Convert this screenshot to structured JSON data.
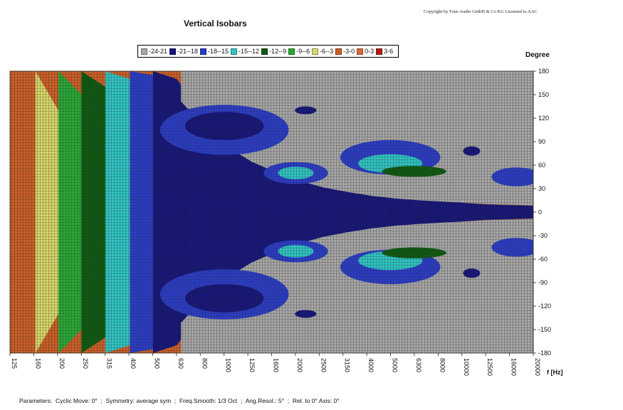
{
  "copyright": "Copyright by Four-Audio GmbH & Co KG   Licensed to AAC",
  "parameters": {
    "prefix": "Parameters:",
    "items": [
      "Cyclic Move: 0°",
      "Symmetry: average sym",
      "Freq.Smooth: 1/3 Oct",
      "Ang.Resol.: 5°",
      "Rel. to 0° Axis: 0°"
    ]
  },
  "colors": {
    "background_grid": "#a7a7a7",
    "grid_lines": "#2c2c2c"
  },
  "chart_data": {
    "type": "heatmap",
    "title": "Vertical Isobars",
    "xlabel": "f [Hz]",
    "ylabel": "Degree",
    "x_scale": "log",
    "x_ticks": [
      "125",
      "160",
      "200",
      "250",
      "315",
      "400",
      "500",
      "630",
      "800",
      "1000",
      "1250",
      "1600",
      "2000",
      "2500",
      "3150",
      "4000",
      "5000",
      "6300",
      "8000",
      "10000",
      "12500",
      "16000",
      "20000"
    ],
    "y_ticks": [
      180,
      150,
      120,
      90,
      60,
      30,
      0,
      -30,
      -60,
      -90,
      -120,
      -150,
      -180
    ],
    "ylim": [
      -180,
      180
    ],
    "xlim": [
      125,
      20000
    ],
    "legend_placement": "top",
    "legend": [
      {
        "label": "-24-21",
        "color": "#a7a7a7"
      },
      {
        "label": "-21--18",
        "color": "#15157a"
      },
      {
        "label": "-18--15",
        "color": "#2a3cc6"
      },
      {
        "label": "-15--12",
        "color": "#30c5c5"
      },
      {
        "label": "-12--9",
        "color": "#0e5a10"
      },
      {
        "label": "-9--6",
        "color": "#28a834"
      },
      {
        "label": "-6--3",
        "color": "#d8d86a"
      },
      {
        "label": "-3-0",
        "color": "#cc5f26"
      },
      {
        "label": "0-3",
        "color": "#d86a3a"
      },
      {
        "label": "3-6",
        "color": "#b01c14"
      }
    ],
    "contours": [
      {
        "level": "-3-0",
        "color": "#cc5f26",
        "frequency_hz": [
          125,
          160,
          200,
          250,
          315,
          400,
          500,
          630,
          800,
          1000,
          1250,
          1600,
          2000,
          2500,
          3150,
          4000,
          5000,
          6300,
          8000,
          10000,
          12500,
          16000,
          20000
        ],
        "half_width_deg": [
          180,
          180,
          180,
          180,
          180,
          180,
          180,
          180,
          180,
          180,
          180,
          180,
          180,
          180,
          180,
          180,
          180,
          180,
          180,
          180,
          180,
          180,
          180
        ]
      },
      {
        "level": "-6--3",
        "color": "#d8d86a",
        "frequency_hz": [
          160,
          200,
          250,
          315,
          400,
          500,
          630,
          800,
          1000,
          1250,
          1600,
          2000,
          2500,
          3150,
          4000,
          5000,
          6300,
          8000,
          10000,
          12500,
          16000,
          20000
        ],
        "half_width_deg": [
          180,
          130,
          100,
          82,
          62,
          48,
          36,
          26,
          20,
          14,
          11,
          8,
          6,
          5,
          4,
          3,
          3,
          2,
          2,
          2,
          2,
          2
        ]
      },
      {
        "level": "-9--6",
        "color": "#28a834",
        "frequency_hz": [
          200,
          250,
          315,
          400,
          500,
          630,
          800,
          1000,
          1250,
          1600,
          2000,
          2500,
          3150,
          4000,
          5000,
          6300,
          8000,
          10000,
          12500,
          16000,
          20000
        ],
        "half_width_deg": [
          180,
          150,
          110,
          82,
          62,
          46,
          34,
          26,
          20,
          15,
          11,
          8,
          6,
          5,
          4,
          3,
          3,
          2,
          2,
          2,
          2
        ]
      },
      {
        "level": "-12--9",
        "color": "#0e5a10",
        "frequency_hz": [
          250,
          315,
          400,
          500,
          630,
          800,
          1000,
          1250,
          1600,
          2000,
          2500,
          3150,
          4000,
          5000,
          6300,
          8000,
          10000,
          12500,
          16000,
          20000
        ],
        "half_width_deg": [
          180,
          160,
          120,
          90,
          68,
          52,
          40,
          30,
          23,
          18,
          14,
          11,
          9,
          7,
          6,
          5,
          4,
          3,
          3,
          2
        ]
      },
      {
        "level": "-15--12",
        "color": "#30c5c5",
        "frequency_hz": [
          315,
          400,
          500,
          630,
          800,
          1000,
          1250,
          1600,
          2000,
          2500,
          3150,
          4000,
          5000,
          6300,
          8000,
          10000,
          12500,
          16000,
          20000
        ],
        "half_width_deg": [
          180,
          170,
          130,
          96,
          72,
          56,
          44,
          34,
          27,
          21,
          17,
          14,
          11,
          9,
          8,
          7,
          6,
          5,
          4
        ]
      },
      {
        "level": "-18--15",
        "color": "#2a3cc6",
        "frequency_hz": [
          400,
          500,
          630,
          800,
          1000,
          1250,
          1600,
          2000,
          2500,
          3150,
          4000,
          5000,
          6300,
          8000,
          10000,
          12500,
          16000,
          20000
        ],
        "half_width_deg": [
          180,
          175,
          140,
          104,
          80,
          62,
          48,
          38,
          30,
          24,
          19,
          16,
          13,
          11,
          9,
          8,
          7,
          6
        ]
      },
      {
        "level": "-21--18",
        "color": "#15157a",
        "frequency_hz": [
          500,
          630,
          800,
          1000,
          1250,
          1600,
          2000,
          2500,
          3150,
          4000,
          5000,
          6300,
          8000,
          10000,
          12500,
          16000,
          20000
        ],
        "half_width_deg": [
          180,
          170,
          128,
          98,
          76,
          59,
          46,
          36,
          29,
          23,
          19,
          16,
          14,
          12,
          10,
          9,
          8
        ]
      }
    ],
    "islands": [
      {
        "level": "-18--15",
        "freq_hz": 1000,
        "deg": 105,
        "d_freq_oct": 0.9,
        "d_deg": 32
      },
      {
        "level": "-21--18",
        "freq_hz": 1000,
        "deg": 110,
        "d_freq_oct": 0.55,
        "d_deg": 18
      },
      {
        "level": "-18--15",
        "freq_hz": 2000,
        "deg": 50,
        "d_freq_oct": 0.45,
        "d_deg": 14
      },
      {
        "level": "-15--12",
        "freq_hz": 2000,
        "deg": 50,
        "d_freq_oct": 0.25,
        "d_deg": 8
      },
      {
        "level": "-21--18",
        "freq_hz": 2200,
        "deg": 130,
        "d_freq_oct": 0.15,
        "d_deg": 5
      },
      {
        "level": "-18--15",
        "freq_hz": 5000,
        "deg": 70,
        "d_freq_oct": 0.7,
        "d_deg": 22
      },
      {
        "level": "-15--12",
        "freq_hz": 5000,
        "deg": 62,
        "d_freq_oct": 0.45,
        "d_deg": 12
      },
      {
        "level": "-12--9",
        "freq_hz": 6300,
        "deg": 52,
        "d_freq_oct": 0.45,
        "d_deg": 7
      },
      {
        "level": "-18--15",
        "freq_hz": 17000,
        "deg": 45,
        "d_freq_oct": 0.35,
        "d_deg": 12
      },
      {
        "level": "-21--18",
        "freq_hz": 11000,
        "deg": 78,
        "d_freq_oct": 0.12,
        "d_deg": 6
      }
    ]
  }
}
